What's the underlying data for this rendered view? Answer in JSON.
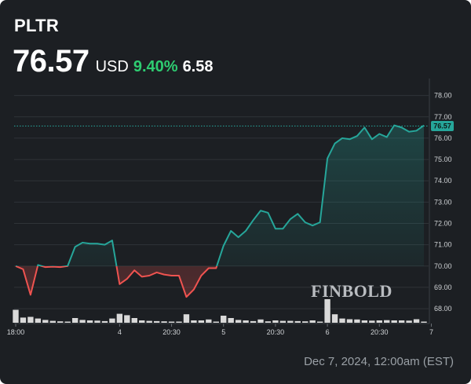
{
  "header": {
    "ticker": "PLTR",
    "price": "76.57",
    "currency": "USD",
    "change_pct": "9.40%",
    "change_abs": "6.58"
  },
  "footer": {
    "date": "Dec 7, 2024, 12:00am (EST)"
  },
  "watermark": "FINBOLD",
  "colors": {
    "background": "#1c1f23",
    "up": "#26a69a",
    "down": "#ef5350",
    "positive_text": "#2ecc71",
    "volume": "#d9d9d9",
    "last_label_bg": "#26a69a"
  },
  "chart_data": {
    "type": "line",
    "title": "",
    "xlabel": "",
    "ylabel": "",
    "ylim": [
      67.45,
      78.65
    ],
    "y_ticks": [
      "68.00",
      "69.00",
      "70.00",
      "71.00",
      "72.00",
      "73.00",
      "74.00",
      "75.00",
      "76.00",
      "77.00",
      "78.00"
    ],
    "x_tick_labels": [
      "18:00",
      "4",
      "20:30",
      "5",
      "20:30",
      "6",
      "20:30",
      "7"
    ],
    "x_tick_index": [
      0,
      14,
      21,
      28,
      35,
      42,
      49,
      56
    ],
    "baseline": 69.99,
    "last_value": 76.57,
    "last_value_label": "76.57",
    "grid": true,
    "series": [
      {
        "values": [
          70.0,
          69.85,
          68.65,
          70.05,
          69.95,
          69.97,
          69.95,
          70.0,
          70.9,
          71.1,
          71.05,
          71.05,
          71.0,
          71.2,
          69.15,
          69.4,
          69.8,
          69.5,
          69.55,
          69.7,
          69.6,
          69.55,
          69.55,
          68.55,
          68.9,
          69.55,
          69.9,
          69.9,
          70.95,
          71.65,
          71.35,
          71.65,
          72.15,
          72.6,
          72.5,
          71.75,
          71.75,
          72.2,
          72.45,
          72.05,
          71.9,
          72.05,
          75.05,
          75.75,
          76.0,
          75.95,
          76.1,
          76.5,
          75.95,
          76.2,
          76.05,
          76.6,
          76.5,
          76.3,
          76.35,
          76.6
        ]
      }
    ],
    "volume": [
      0.55,
      0.22,
      0.25,
      0.18,
      0.12,
      0.08,
      0.06,
      0.05,
      0.2,
      0.12,
      0.1,
      0.09,
      0.07,
      0.18,
      0.38,
      0.32,
      0.2,
      0.1,
      0.08,
      0.07,
      0.06,
      0.05,
      0.05,
      0.36,
      0.1,
      0.1,
      0.14,
      0.03,
      0.3,
      0.2,
      0.12,
      0.1,
      0.07,
      0.14,
      0.06,
      0.1,
      0.08,
      0.08,
      0.07,
      0.06,
      0.1,
      0.04,
      1.0,
      0.36,
      0.18,
      0.15,
      0.14,
      0.1,
      0.09,
      0.1,
      0.11,
      0.1,
      0.1,
      0.09,
      0.15,
      0.03
    ]
  }
}
